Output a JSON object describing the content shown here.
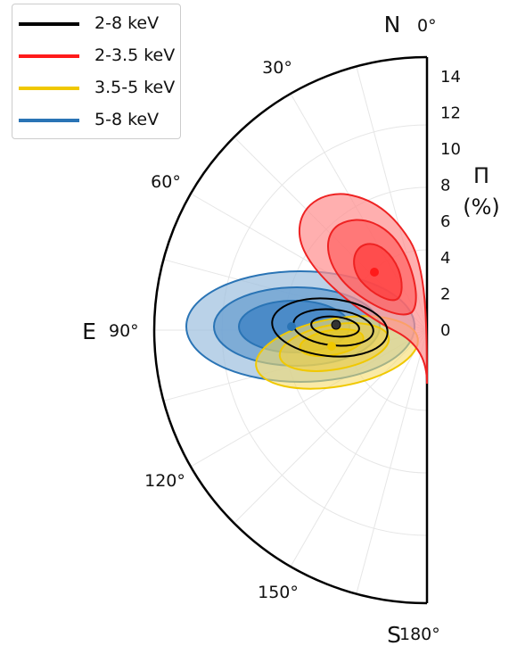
{
  "chart_data": {
    "type": "polar-contour",
    "angular_axis": {
      "direction": "counter-clockwise from north (East on the left)",
      "range_deg": [
        0,
        180
      ],
      "tick_labels": [
        "0°",
        "30°",
        "60°",
        "90°",
        "120°",
        "150°",
        "180°"
      ],
      "cardinal_labels": {
        "north": "N",
        "east": "E",
        "south": "S"
      }
    },
    "radial_axis": {
      "label_line1": "Π",
      "label_line2": "(%)",
      "range": [
        0,
        15
      ],
      "ticks": [
        0,
        2,
        4,
        6,
        8,
        10,
        12,
        14
      ]
    },
    "legend": {
      "placement": "top-left",
      "entries": [
        {
          "label": "2-8 keV",
          "color": "#000000"
        },
        {
          "label": "2-3.5 keV",
          "color": "#ff1a1a"
        },
        {
          "label": "3.5-5 keV",
          "color": "#f0c800"
        },
        {
          "label": "5-8 keV",
          "color": "#2a74b5"
        }
      ]
    },
    "series": [
      {
        "name": "5-8 keV",
        "color": "#2a74b5",
        "fill": true,
        "best_fit": {
          "angle_deg": 80,
          "pol_pct": 8.0
        }
      },
      {
        "name": "3.5-5 keV",
        "color": "#f0c800",
        "fill": true,
        "best_fit": {
          "angle_deg": 110,
          "pol_pct": 4.0
        }
      },
      {
        "name": "2-3.5 keV",
        "color": "#ff1a1a",
        "fill": true,
        "best_fit": {
          "angle_deg": 35,
          "pol_pct": 3.5
        }
      },
      {
        "name": "2-8 keV",
        "color": "#000000",
        "fill": false,
        "best_fit": {
          "angle_deg": 93,
          "pol_pct": 5.0
        }
      }
    ]
  }
}
